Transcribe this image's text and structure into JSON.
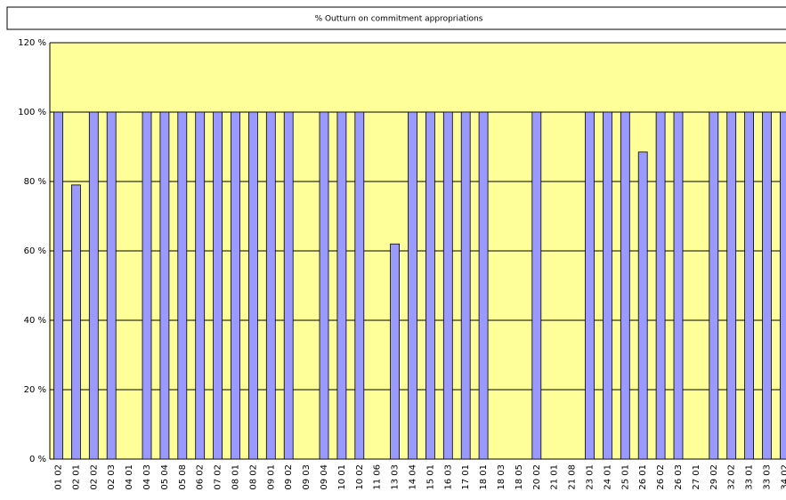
{
  "chart_data": {
    "type": "bar",
    "title": "% Outturn on commitment appropriations",
    "categories": [
      "01 02",
      "02 01",
      "02 02",
      "02 03",
      "04 01",
      "04 03",
      "05 04",
      "05 08",
      "06 02",
      "07 02",
      "08 01",
      "08 02",
      "09 01",
      "09 02",
      "09 03",
      "09 04",
      "10 01",
      "10 02",
      "11 06",
      "13 03",
      "14 04",
      "15 01",
      "16 03",
      "17 01",
      "18 01",
      "18 03",
      "18 05",
      "20 02",
      "21 01",
      "21 08",
      "23 01",
      "24 01",
      "25 01",
      "26 01",
      "26 02",
      "26 03",
      "27 01",
      "29 02",
      "32 02",
      "33 01",
      "33 03",
      "34 02"
    ],
    "values": [
      100,
      79,
      100,
      100,
      0,
      100,
      100,
      100,
      100,
      100,
      100,
      100,
      100,
      100,
      0,
      100,
      100,
      100,
      0,
      62,
      100,
      100,
      100,
      100,
      100,
      0,
      0,
      100,
      0,
      0,
      100,
      100,
      100,
      88.5,
      100,
      100,
      0,
      100,
      100,
      100,
      100,
      100
    ],
    "color": "#9999ff",
    "ylim": [
      0,
      120
    ],
    "yticks": [
      {
        "value": 0,
        "label": "0 %"
      },
      {
        "value": 20,
        "label": "20 %"
      },
      {
        "value": 40,
        "label": "40 %"
      },
      {
        "value": 60,
        "label": "60 %"
      },
      {
        "value": 80,
        "label": "80 %"
      },
      {
        "value": 100,
        "label": "100 %"
      },
      {
        "value": 120,
        "label": "120 %"
      }
    ],
    "grid": true
  }
}
